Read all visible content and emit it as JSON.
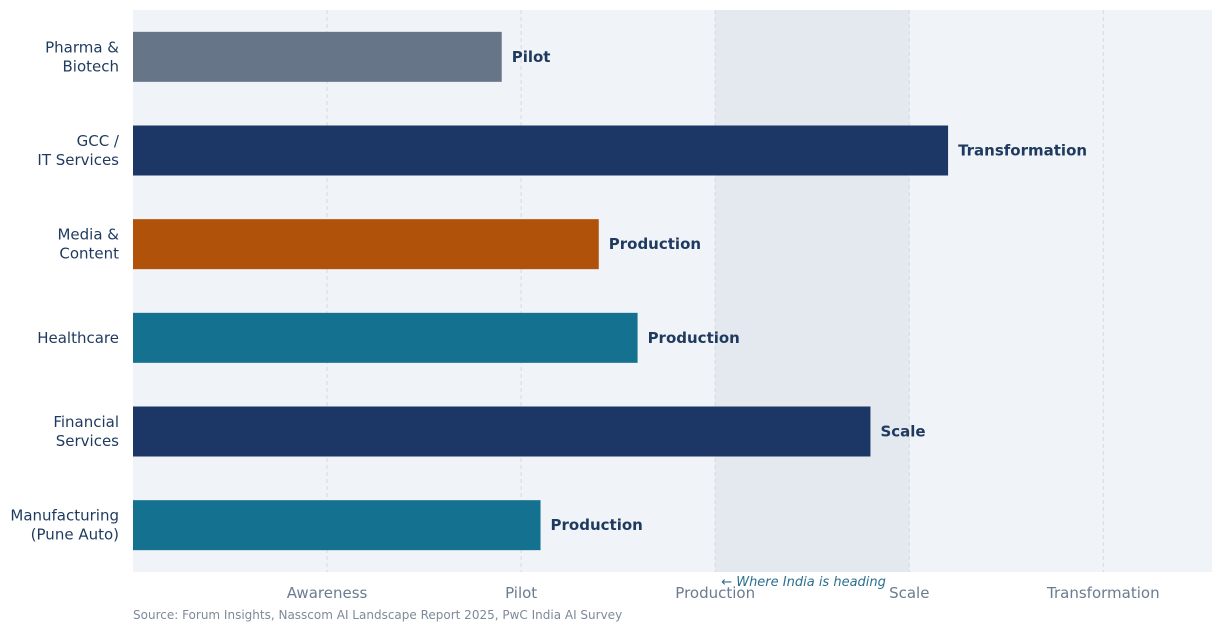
{
  "chart_data": {
    "type": "bar",
    "orientation": "horizontal",
    "categories": [
      "Pharma &\nBiotech",
      "GCC /\nIT Services",
      "Media &\nContent",
      "Healthcare",
      "Financial\nServices",
      "Manufacturing\n(Pune Auto)"
    ],
    "values": [
      1.9,
      4.2,
      2.4,
      2.6,
      3.8,
      2.1
    ],
    "bar_labels": [
      "Pilot",
      "Transformation",
      "Production",
      "Production",
      "Scale",
      "Production"
    ],
    "bar_colors": [
      "#667588",
      "#1c3666",
      "#b1520a",
      "#147290",
      "#1c3666",
      "#147290"
    ],
    "x_ticks": [
      {
        "value": 1,
        "label": "Awareness"
      },
      {
        "value": 2,
        "label": "Pilot"
      },
      {
        "value": 3,
        "label": "Production"
      },
      {
        "value": 4,
        "label": "Scale"
      },
      {
        "value": 5,
        "label": "Transformation"
      }
    ],
    "xlim": [
      0,
      5.56
    ],
    "highlight_band": {
      "from": 3,
      "to": 4,
      "label": "← Where India is heading",
      "color": "#e3e9ef"
    },
    "grid": "vertical dashed",
    "background": "#f0f3f7",
    "title": "",
    "xlabel": "",
    "ylabel": ""
  },
  "source_note": "Source: Forum Insights, Nasscom AI Landscape Report 2025, PwC India AI Survey"
}
